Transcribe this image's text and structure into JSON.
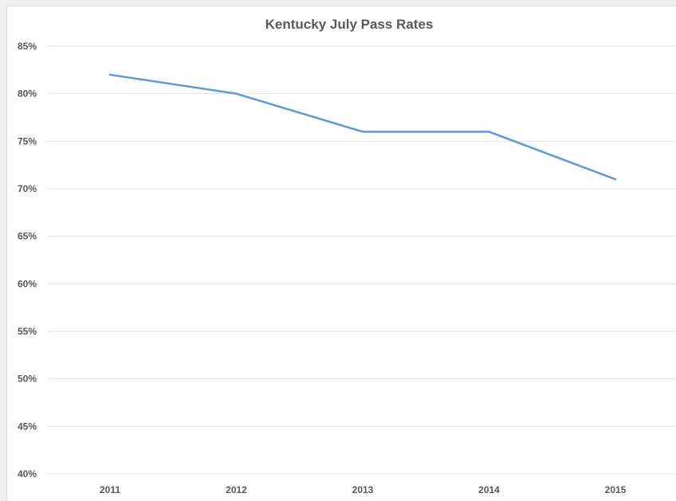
{
  "chart_data": {
    "type": "line",
    "title": "Kentucky July Pass Rates",
    "xlabel": "",
    "ylabel": "",
    "categories": [
      "2011",
      "2012",
      "2013",
      "2014",
      "2015"
    ],
    "series": [
      {
        "values": [
          82,
          80,
          76,
          76,
          71
        ]
      }
    ],
    "ylim": [
      40,
      85
    ],
    "ystep": 5,
    "ytick_suffix": "%",
    "grid": true,
    "legend": "none",
    "colors": {
      "line": "#5b9bd5",
      "grid": "#e3e3e3",
      "text": "#595959"
    }
  }
}
